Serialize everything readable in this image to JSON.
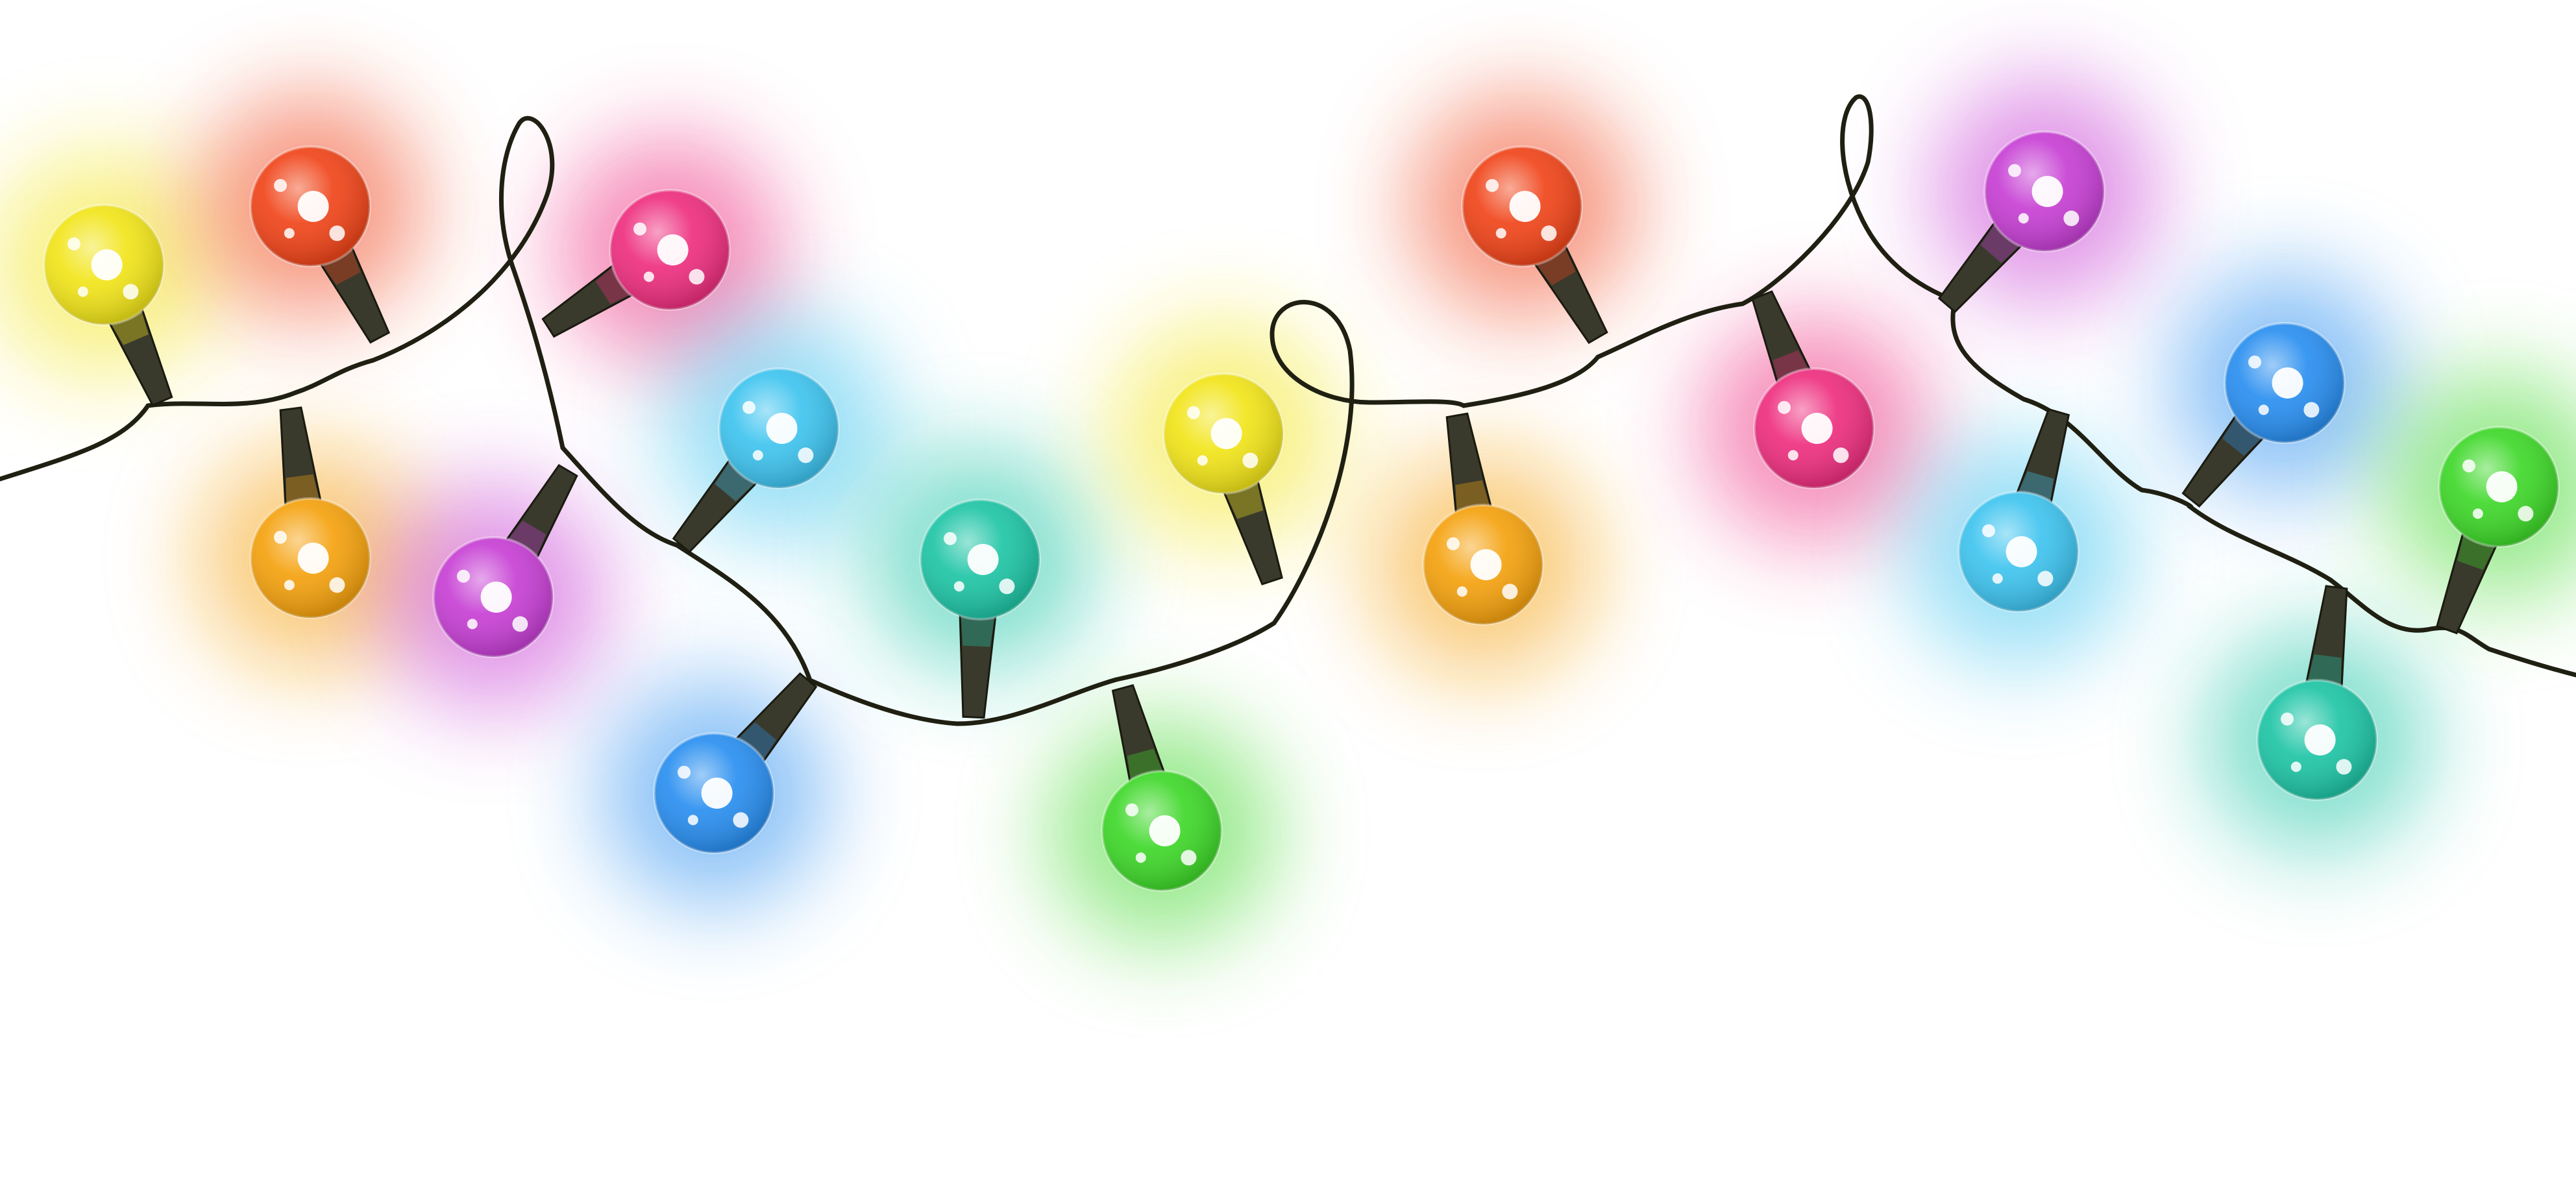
{
  "image": {
    "subject": "string-of-christmas-lights",
    "background_color": "#ffffff",
    "wire_color": "#1f1f12",
    "socket_color": "#3a3a2c"
  },
  "bulbs": [
    {
      "id": "bulb-1",
      "color_name": "yellow",
      "color": "#f2e51a"
    },
    {
      "id": "bulb-2",
      "color_name": "red",
      "color": "#f0451a"
    },
    {
      "id": "bulb-3",
      "color_name": "orange",
      "color": "#f5a20f"
    },
    {
      "id": "bulb-4",
      "color_name": "pink",
      "color": "#ee2f7f"
    },
    {
      "id": "bulb-5",
      "color_name": "purple",
      "color": "#c740d4"
    },
    {
      "id": "bulb-6",
      "color_name": "sky-blue",
      "color": "#3fc4ef"
    },
    {
      "id": "bulb-7",
      "color_name": "blue",
      "color": "#2a8ff0"
    },
    {
      "id": "bulb-8",
      "color_name": "teal",
      "color": "#1fc5a6"
    },
    {
      "id": "bulb-9",
      "color_name": "green",
      "color": "#3fd82a"
    },
    {
      "id": "bulb-10",
      "color_name": "yellow",
      "color": "#f2e51a"
    },
    {
      "id": "bulb-11",
      "color_name": "orange",
      "color": "#f5a20f"
    },
    {
      "id": "bulb-12",
      "color_name": "red",
      "color": "#f0451a"
    },
    {
      "id": "bulb-13",
      "color_name": "pink",
      "color": "#ee2f7f"
    },
    {
      "id": "bulb-14",
      "color_name": "purple",
      "color": "#c740d4"
    },
    {
      "id": "bulb-15",
      "color_name": "sky-blue",
      "color": "#3fc4ef"
    },
    {
      "id": "bulb-16",
      "color_name": "blue",
      "color": "#2a8ff0"
    },
    {
      "id": "bulb-17",
      "color_name": "green",
      "color": "#3fd82a"
    },
    {
      "id": "bulb-18",
      "color_name": "teal",
      "color": "#1fc5a6"
    }
  ]
}
